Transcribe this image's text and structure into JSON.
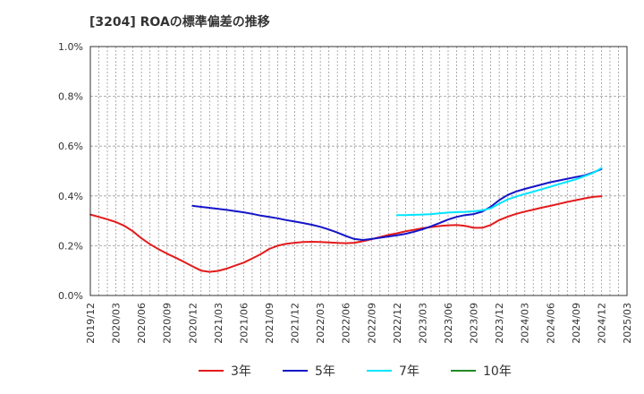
{
  "chart_data": {
    "type": "line",
    "title": "[3204]  ROAの標準偏差の推移",
    "xlabel": "",
    "ylabel": "",
    "ylim": [
      0,
      1.0
    ],
    "y_ticks": [
      "0.0%",
      "0.2%",
      "0.4%",
      "0.6%",
      "0.8%",
      "1.0%"
    ],
    "x_ticks": [
      "2019/12",
      "2020/03",
      "2020/06",
      "2020/09",
      "2020/12",
      "2021/03",
      "2021/06",
      "2021/09",
      "2021/12",
      "2022/03",
      "2022/06",
      "2022/09",
      "2022/12",
      "2023/03",
      "2023/06",
      "2023/09",
      "2023/12",
      "2024/03",
      "2024/06",
      "2024/09",
      "2024/12",
      "2025/03"
    ],
    "grid": true,
    "legend_position": "bottom",
    "series": [
      {
        "name": "3年",
        "color": "#e41a1c",
        "x": [
          "2019/12",
          "2020/01",
          "2020/02",
          "2020/03",
          "2020/04",
          "2020/05",
          "2020/06",
          "2020/07",
          "2020/08",
          "2020/09",
          "2020/10",
          "2020/11",
          "2020/12",
          "2021/01",
          "2021/02",
          "2021/03",
          "2021/04",
          "2021/05",
          "2021/06",
          "2021/07",
          "2021/08",
          "2021/09",
          "2021/10",
          "2021/11",
          "2021/12",
          "2022/01",
          "2022/02",
          "2022/03",
          "2022/04",
          "2022/05",
          "2022/06",
          "2022/07",
          "2022/08",
          "2022/09",
          "2022/10",
          "2022/11",
          "2022/12",
          "2023/01",
          "2023/02",
          "2023/03",
          "2023/04",
          "2023/05",
          "2023/06",
          "2023/07",
          "2023/08",
          "2023/09",
          "2023/10",
          "2023/11",
          "2023/12",
          "2024/01",
          "2024/02",
          "2024/03",
          "2024/04",
          "2024/05",
          "2024/06",
          "2024/07",
          "2024/08",
          "2024/09",
          "2024/10",
          "2024/11",
          "2024/12"
        ],
        "values": [
          0.325,
          0.316,
          0.306,
          0.295,
          0.28,
          0.258,
          0.23,
          0.206,
          0.186,
          0.168,
          0.152,
          0.135,
          0.117,
          0.1,
          0.095,
          0.099,
          0.108,
          0.12,
          0.132,
          0.149,
          0.166,
          0.187,
          0.2,
          0.208,
          0.212,
          0.215,
          0.216,
          0.215,
          0.213,
          0.211,
          0.21,
          0.212,
          0.218,
          0.226,
          0.235,
          0.243,
          0.25,
          0.258,
          0.264,
          0.27,
          0.275,
          0.279,
          0.282,
          0.283,
          0.28,
          0.272,
          0.272,
          0.283,
          0.303,
          0.317,
          0.328,
          0.337,
          0.345,
          0.353,
          0.36,
          0.368,
          0.376,
          0.383,
          0.39,
          0.396,
          0.399
        ]
      },
      {
        "name": "5年",
        "color": "#1414c8",
        "x": [
          "2020/12",
          "2021/01",
          "2021/02",
          "2021/03",
          "2021/04",
          "2021/05",
          "2021/06",
          "2021/07",
          "2021/08",
          "2021/09",
          "2021/10",
          "2021/11",
          "2021/12",
          "2022/01",
          "2022/02",
          "2022/03",
          "2022/04",
          "2022/05",
          "2022/06",
          "2022/07",
          "2022/08",
          "2022/09",
          "2022/10",
          "2022/11",
          "2022/12",
          "2023/01",
          "2023/02",
          "2023/03",
          "2023/04",
          "2023/05",
          "2023/06",
          "2023/07",
          "2023/08",
          "2023/09",
          "2023/10",
          "2023/11",
          "2023/12",
          "2024/01",
          "2024/02",
          "2024/03",
          "2024/04",
          "2024/05",
          "2024/06",
          "2024/07",
          "2024/08",
          "2024/09",
          "2024/10",
          "2024/11",
          "2024/12"
        ],
        "values": [
          0.36,
          0.356,
          0.352,
          0.348,
          0.344,
          0.339,
          0.334,
          0.328,
          0.321,
          0.316,
          0.31,
          0.303,
          0.297,
          0.291,
          0.284,
          0.276,
          0.265,
          0.253,
          0.239,
          0.227,
          0.223,
          0.227,
          0.232,
          0.237,
          0.242,
          0.248,
          0.256,
          0.266,
          0.278,
          0.291,
          0.305,
          0.316,
          0.323,
          0.327,
          0.337,
          0.356,
          0.383,
          0.404,
          0.418,
          0.428,
          0.437,
          0.446,
          0.455,
          0.462,
          0.469,
          0.476,
          0.482,
          0.494,
          0.508
        ]
      },
      {
        "name": "7年",
        "color": "#00e5ff",
        "x": [
          "2022/12",
          "2023/01",
          "2023/02",
          "2023/03",
          "2023/04",
          "2023/05",
          "2023/06",
          "2023/07",
          "2023/08",
          "2023/09",
          "2023/10",
          "2023/11",
          "2023/12",
          "2024/01",
          "2024/02",
          "2024/03",
          "2024/04",
          "2024/05",
          "2024/06",
          "2024/07",
          "2024/08",
          "2024/09",
          "2024/10",
          "2024/11",
          "2024/12"
        ],
        "values": [
          0.323,
          0.323,
          0.324,
          0.325,
          0.327,
          0.33,
          0.333,
          0.335,
          0.336,
          0.338,
          0.342,
          0.35,
          0.369,
          0.386,
          0.398,
          0.408,
          0.417,
          0.427,
          0.437,
          0.447,
          0.457,
          0.467,
          0.479,
          0.492,
          0.512
        ]
      },
      {
        "name": "10年",
        "color": "#228b22",
        "x": [],
        "values": []
      }
    ]
  }
}
